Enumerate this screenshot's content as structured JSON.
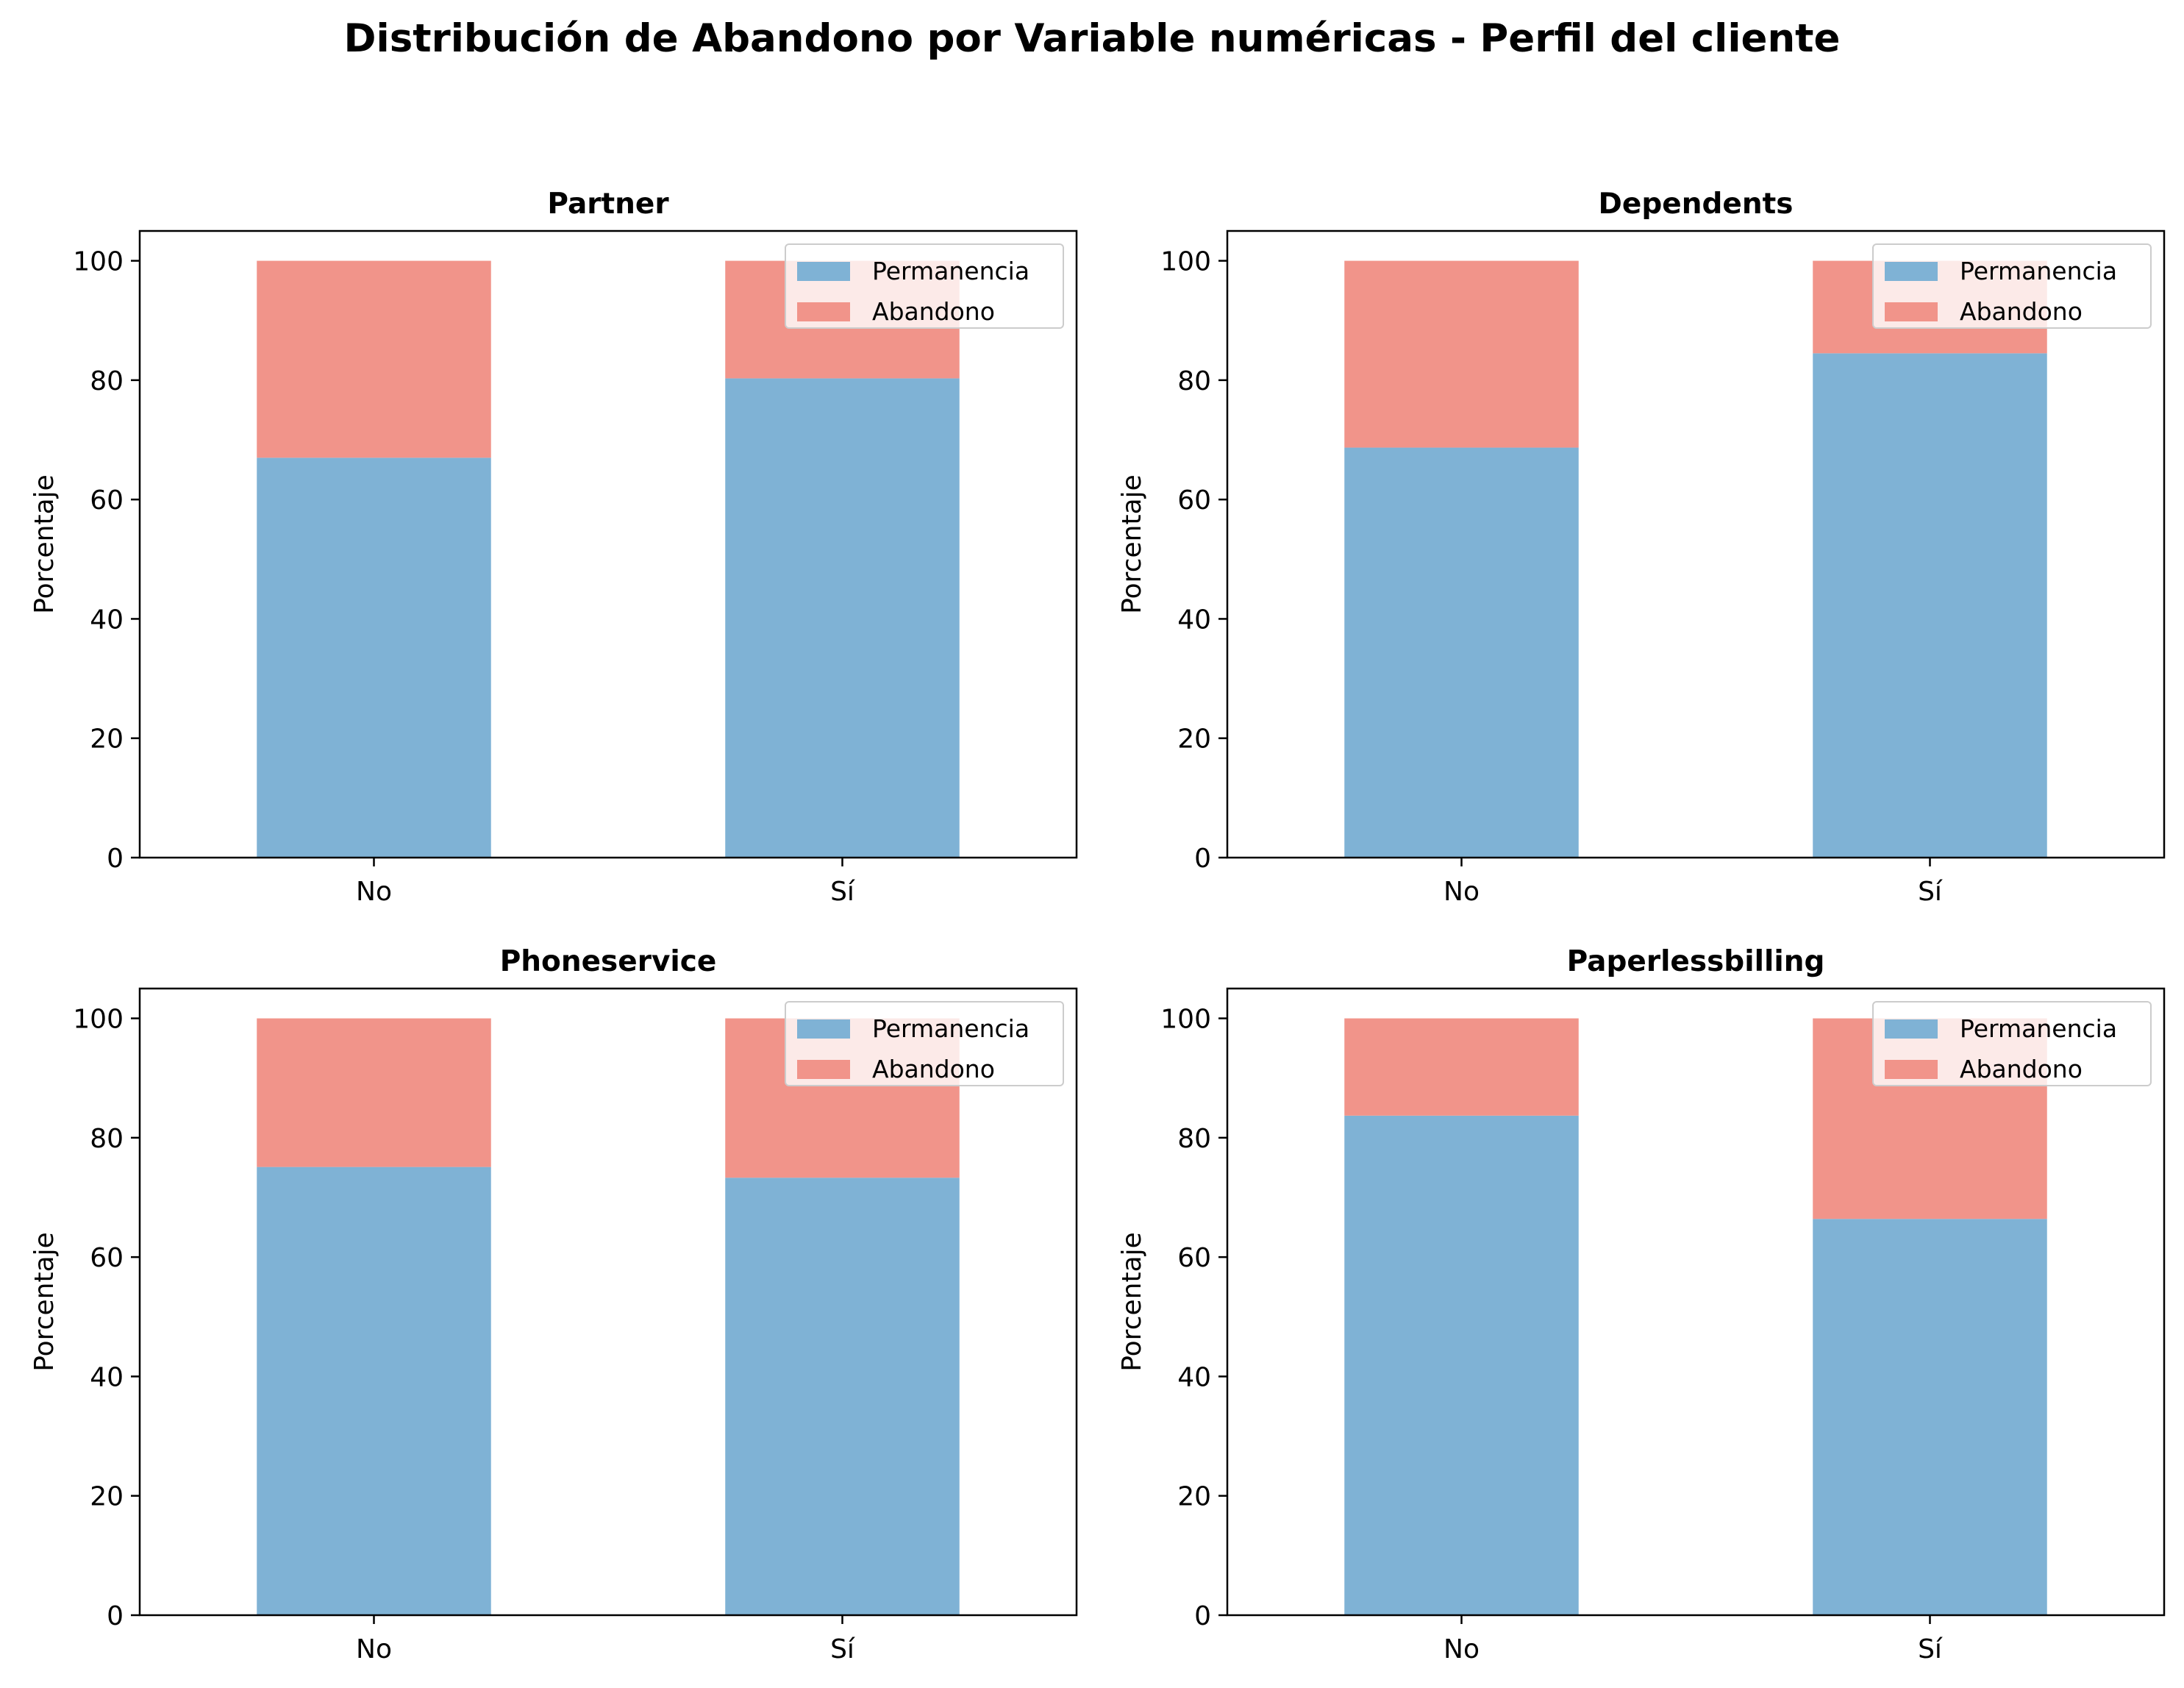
{
  "figure_title": "Distribución de Abandono por Variable numéricas - Perfil del cliente",
  "colors": {
    "permanencia": "#7fb2d5",
    "abandono": "#f1948a"
  },
  "chart_data": [
    {
      "type": "bar",
      "stacked": true,
      "title": "Partner",
      "ylabel": "Porcentaje",
      "xlabel": "",
      "categories": [
        "No",
        "Sí"
      ],
      "series": [
        {
          "name": "Permanencia",
          "values": [
            67.0,
            80.3
          ]
        },
        {
          "name": "Abandono",
          "values": [
            33.0,
            19.7
          ]
        }
      ],
      "ylim": [
        0,
        105
      ],
      "yticks": [
        0,
        20,
        40,
        60,
        80,
        100
      ],
      "legend": "upper right"
    },
    {
      "type": "bar",
      "stacked": true,
      "title": "Dependents",
      "ylabel": "Porcentaje",
      "xlabel": "",
      "categories": [
        "No",
        "Sí"
      ],
      "series": [
        {
          "name": "Permanencia",
          "values": [
            68.7,
            84.5
          ]
        },
        {
          "name": "Abandono",
          "values": [
            31.3,
            15.5
          ]
        }
      ],
      "ylim": [
        0,
        105
      ],
      "yticks": [
        0,
        20,
        40,
        60,
        80,
        100
      ],
      "legend": "upper right"
    },
    {
      "type": "bar",
      "stacked": true,
      "title": "Phoneservice",
      "ylabel": "Porcentaje",
      "xlabel": "",
      "categories": [
        "No",
        "Sí"
      ],
      "series": [
        {
          "name": "Permanencia",
          "values": [
            75.1,
            73.3
          ]
        },
        {
          "name": "Abandono",
          "values": [
            24.9,
            26.7
          ]
        }
      ],
      "ylim": [
        0,
        105
      ],
      "yticks": [
        0,
        20,
        40,
        60,
        80,
        100
      ],
      "legend": "upper right"
    },
    {
      "type": "bar",
      "stacked": true,
      "title": "Paperlessbilling",
      "ylabel": "Porcentaje",
      "xlabel": "",
      "categories": [
        "No",
        "Sí"
      ],
      "series": [
        {
          "name": "Permanencia",
          "values": [
            83.7,
            66.4
          ]
        },
        {
          "name": "Abandono",
          "values": [
            16.3,
            33.6
          ]
        }
      ],
      "ylim": [
        0,
        105
      ],
      "yticks": [
        0,
        20,
        40,
        60,
        80,
        100
      ],
      "legend": "upper right"
    }
  ]
}
